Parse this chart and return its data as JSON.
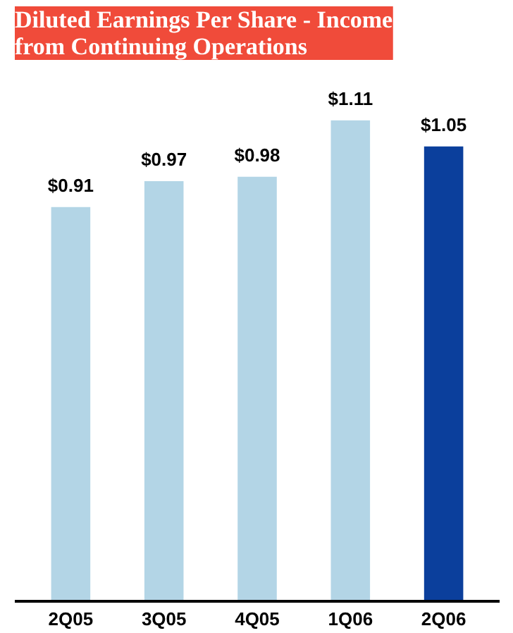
{
  "chart_data": {
    "type": "bar",
    "title": "Diluted Earnings Per Share - Income from Continuing Operations",
    "categories": [
      "2Q05",
      "3Q05",
      "4Q05",
      "1Q06",
      "2Q06"
    ],
    "values": [
      0.91,
      0.97,
      0.98,
      1.11,
      1.05
    ],
    "value_labels": [
      "$0.91",
      "$0.97",
      "$0.98",
      "$1.11",
      "$1.05"
    ],
    "colors": [
      "#b3d5e6",
      "#b3d5e6",
      "#b3d5e6",
      "#b3d5e6",
      "#0b3f9c"
    ],
    "grid": false
  }
}
